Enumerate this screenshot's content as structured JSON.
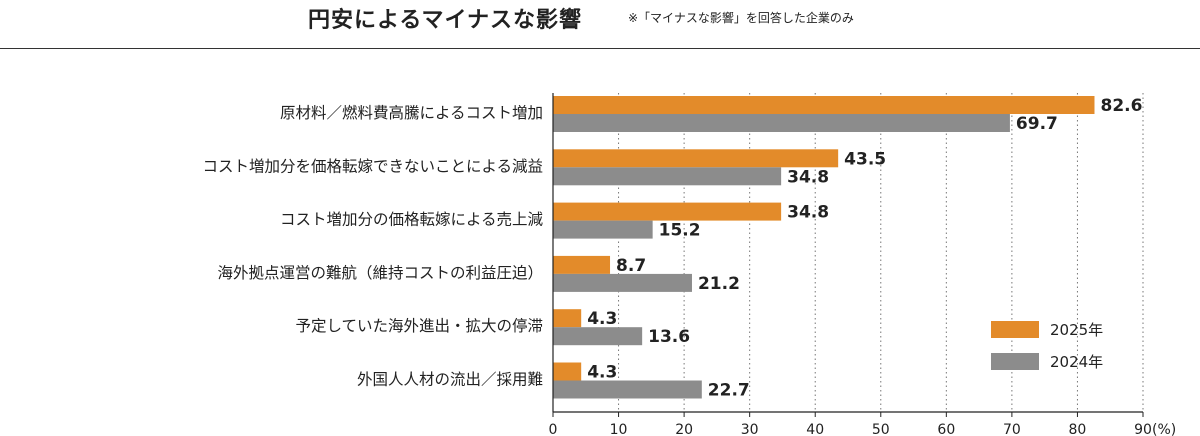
{
  "header": {
    "title": "円安によるマイナスな影響",
    "note": "※「マイナスな影響」を回答した企業のみ"
  },
  "colors": {
    "s2025": "#E38B2A",
    "s2024": "#8C8C8C"
  },
  "chart_data": {
    "type": "bar",
    "orientation": "horizontal",
    "categories": [
      "原材料／燃料費高騰によるコスト増加",
      "コスト増加分を価格転嫁できないことによる減益",
      "コスト増加分の価格転嫁による売上減",
      "海外拠点運営の難航（維持コストの利益圧迫）",
      "予定していた海外進出・拡大の停滞",
      "外国人人材の流出／採用難"
    ],
    "series": [
      {
        "name": "2025年",
        "values": [
          82.6,
          43.5,
          34.8,
          8.7,
          4.3,
          4.3
        ],
        "labels": [
          "82.6",
          "43.5",
          "34.8",
          "8.7",
          "4.3",
          "4.3"
        ]
      },
      {
        "name": "2024年",
        "values": [
          69.7,
          34.8,
          15.2,
          21.2,
          13.6,
          22.7
        ],
        "labels": [
          "69.7",
          "34.8",
          "15.2",
          "21.2",
          "13.6",
          "22.7"
        ]
      }
    ],
    "xlim": [
      0,
      90
    ],
    "xticks": [
      "0",
      "10",
      "20",
      "30",
      "40",
      "50",
      "60",
      "70",
      "80",
      "90"
    ],
    "xunit": "(%)",
    "grid": "vertical-dotted",
    "legend_position": "bottom-right"
  }
}
